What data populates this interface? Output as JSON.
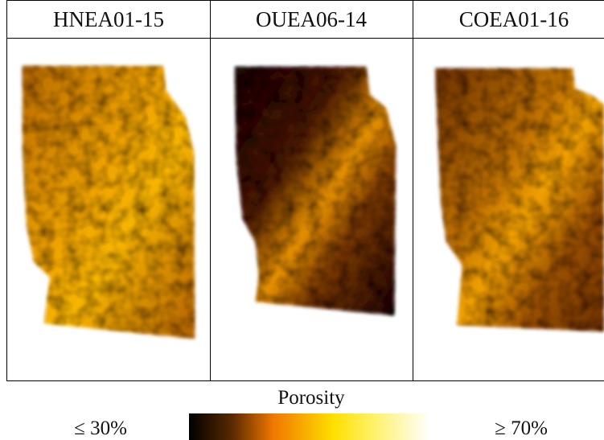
{
  "panels": [
    {
      "title": "HNEA01-15"
    },
    {
      "title": "OUEA06-14"
    },
    {
      "title": "COEA01-16"
    }
  ],
  "colorbar": {
    "label": "Porosity",
    "min_label": "≤ 30%",
    "max_label": "≥ 70%"
  }
}
